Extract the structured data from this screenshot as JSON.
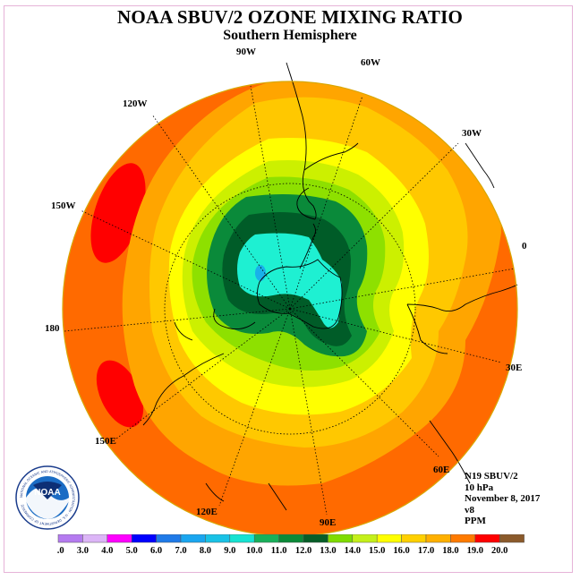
{
  "title": "NOAA SBUV/2 OZONE MIXING RATIO",
  "subtitle": "Southern Hemisphere",
  "longitude_labels": {
    "90W": "90W",
    "60W": "60W",
    "30W": "30W",
    "0": "0",
    "30E": "30E",
    "60E": "60E",
    "90E": "90E",
    "120E": "120E",
    "150E": "150E",
    "180": "180",
    "150W": "150W",
    "120W": "120W"
  },
  "info": {
    "satellite": "N19 SBUV/2",
    "level": "10 hPa",
    "date": "November 8, 2017",
    "version": "v8",
    "units": "PPM"
  },
  "logo_text": "NOAA",
  "logo_ring_text": "NATIONAL OCEANIC AND ATMOSPHERIC ADMINISTRATION · U.S. DEPARTMENT OF COMMERCE",
  "colorbar": {
    "labels": [
      "2.0",
      "3.0",
      "4.0",
      "5.0",
      "6.0",
      "7.0",
      "8.0",
      "9.0",
      "10.0",
      "11.0",
      "12.0",
      "13.0",
      "14.0",
      "15.0",
      "16.0",
      "17.0",
      "18.0",
      "19.0",
      "20.0"
    ],
    "colors": [
      "#b57bf0",
      "#dcb5f7",
      "#ff00ff",
      "#0000ff",
      "#1f7ae8",
      "#1aa6f0",
      "#19c2e6",
      "#16e3d2",
      "#18b05a",
      "#0b8a38",
      "#075e28",
      "#7fdc00",
      "#c4f01a",
      "#ffff00",
      "#ffd000",
      "#ffb000",
      "#ff7a00",
      "#ff0000",
      "#8b5a2b"
    ]
  },
  "map_colors": {
    "ppm_18": "#ff6a00",
    "ppm_19": "#ff0000",
    "ppm_17": "#ffa500",
    "ppm_16": "#ffc800",
    "ppm_15": "#ffff00",
    "ppm_14": "#ccf000",
    "ppm_13": "#8ee000",
    "ppm_12": "#0a8a3a",
    "ppm_11": "#005c28",
    "ppm_10": "#1ef0d2",
    "ppm_9": "#19b0ea"
  }
}
